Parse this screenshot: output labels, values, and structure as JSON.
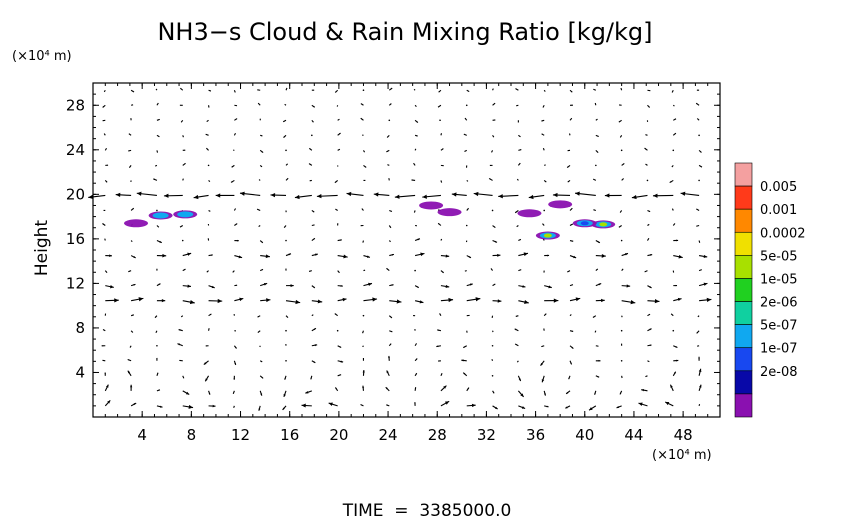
{
  "chart_data": {
    "type": "heatmap",
    "title": "NH3−s Cloud & Rain Mixing Ratio [kg/kg]",
    "ylabel": "Height",
    "y_unit": "(×10⁴ m)",
    "x_unit": "(×10⁴ m)",
    "xlim": [
      0,
      51
    ],
    "ylim": [
      0,
      30
    ],
    "x_ticks": [
      "4",
      "8",
      "12",
      "16",
      "20",
      "24",
      "28",
      "32",
      "36",
      "40",
      "44",
      "48"
    ],
    "y_ticks": [
      "4",
      "8",
      "12",
      "16",
      "20",
      "24",
      "28"
    ],
    "colorbar": {
      "labels": [
        "0.005",
        "0.001",
        "0.0002",
        "5e-05",
        "1e-05",
        "2e-06",
        "5e-07",
        "1e-07",
        "2e-08"
      ],
      "colors": [
        "#f4a0a0",
        "#ff3a1a",
        "#ff8800",
        "#f0e000",
        "#a8e000",
        "#20d020",
        "#10d0a0",
        "#10a8f0",
        "#1848f0",
        "#0808a8",
        "#8a10b0"
      ]
    },
    "mixing_ratio_patches": [
      {
        "x": 3.5,
        "y": 17.4,
        "level": "2e-08"
      },
      {
        "x": 5.5,
        "y": 18.1,
        "level": "5e-07"
      },
      {
        "x": 7.5,
        "y": 18.2,
        "level": "5e-07"
      },
      {
        "x": 27.5,
        "y": 19.0,
        "level": "2e-08"
      },
      {
        "x": 29.0,
        "y": 18.4,
        "level": "2e-08"
      },
      {
        "x": 35.5,
        "y": 18.3,
        "level": "2e-08"
      },
      {
        "x": 37.0,
        "y": 16.3,
        "level": "5e-05"
      },
      {
        "x": 38.0,
        "y": 19.1,
        "level": "2e-08"
      },
      {
        "x": 41.5,
        "y": 17.3,
        "level": "5e-05"
      },
      {
        "x": 40.0,
        "y": 17.4,
        "level": "1e-07"
      }
    ],
    "wind_vectors": "arrows on grid, eastward jets near y=11 and y=20, circulation cells below y=8"
  },
  "footer": {
    "time_label": "TIME  =  3385000.0"
  }
}
